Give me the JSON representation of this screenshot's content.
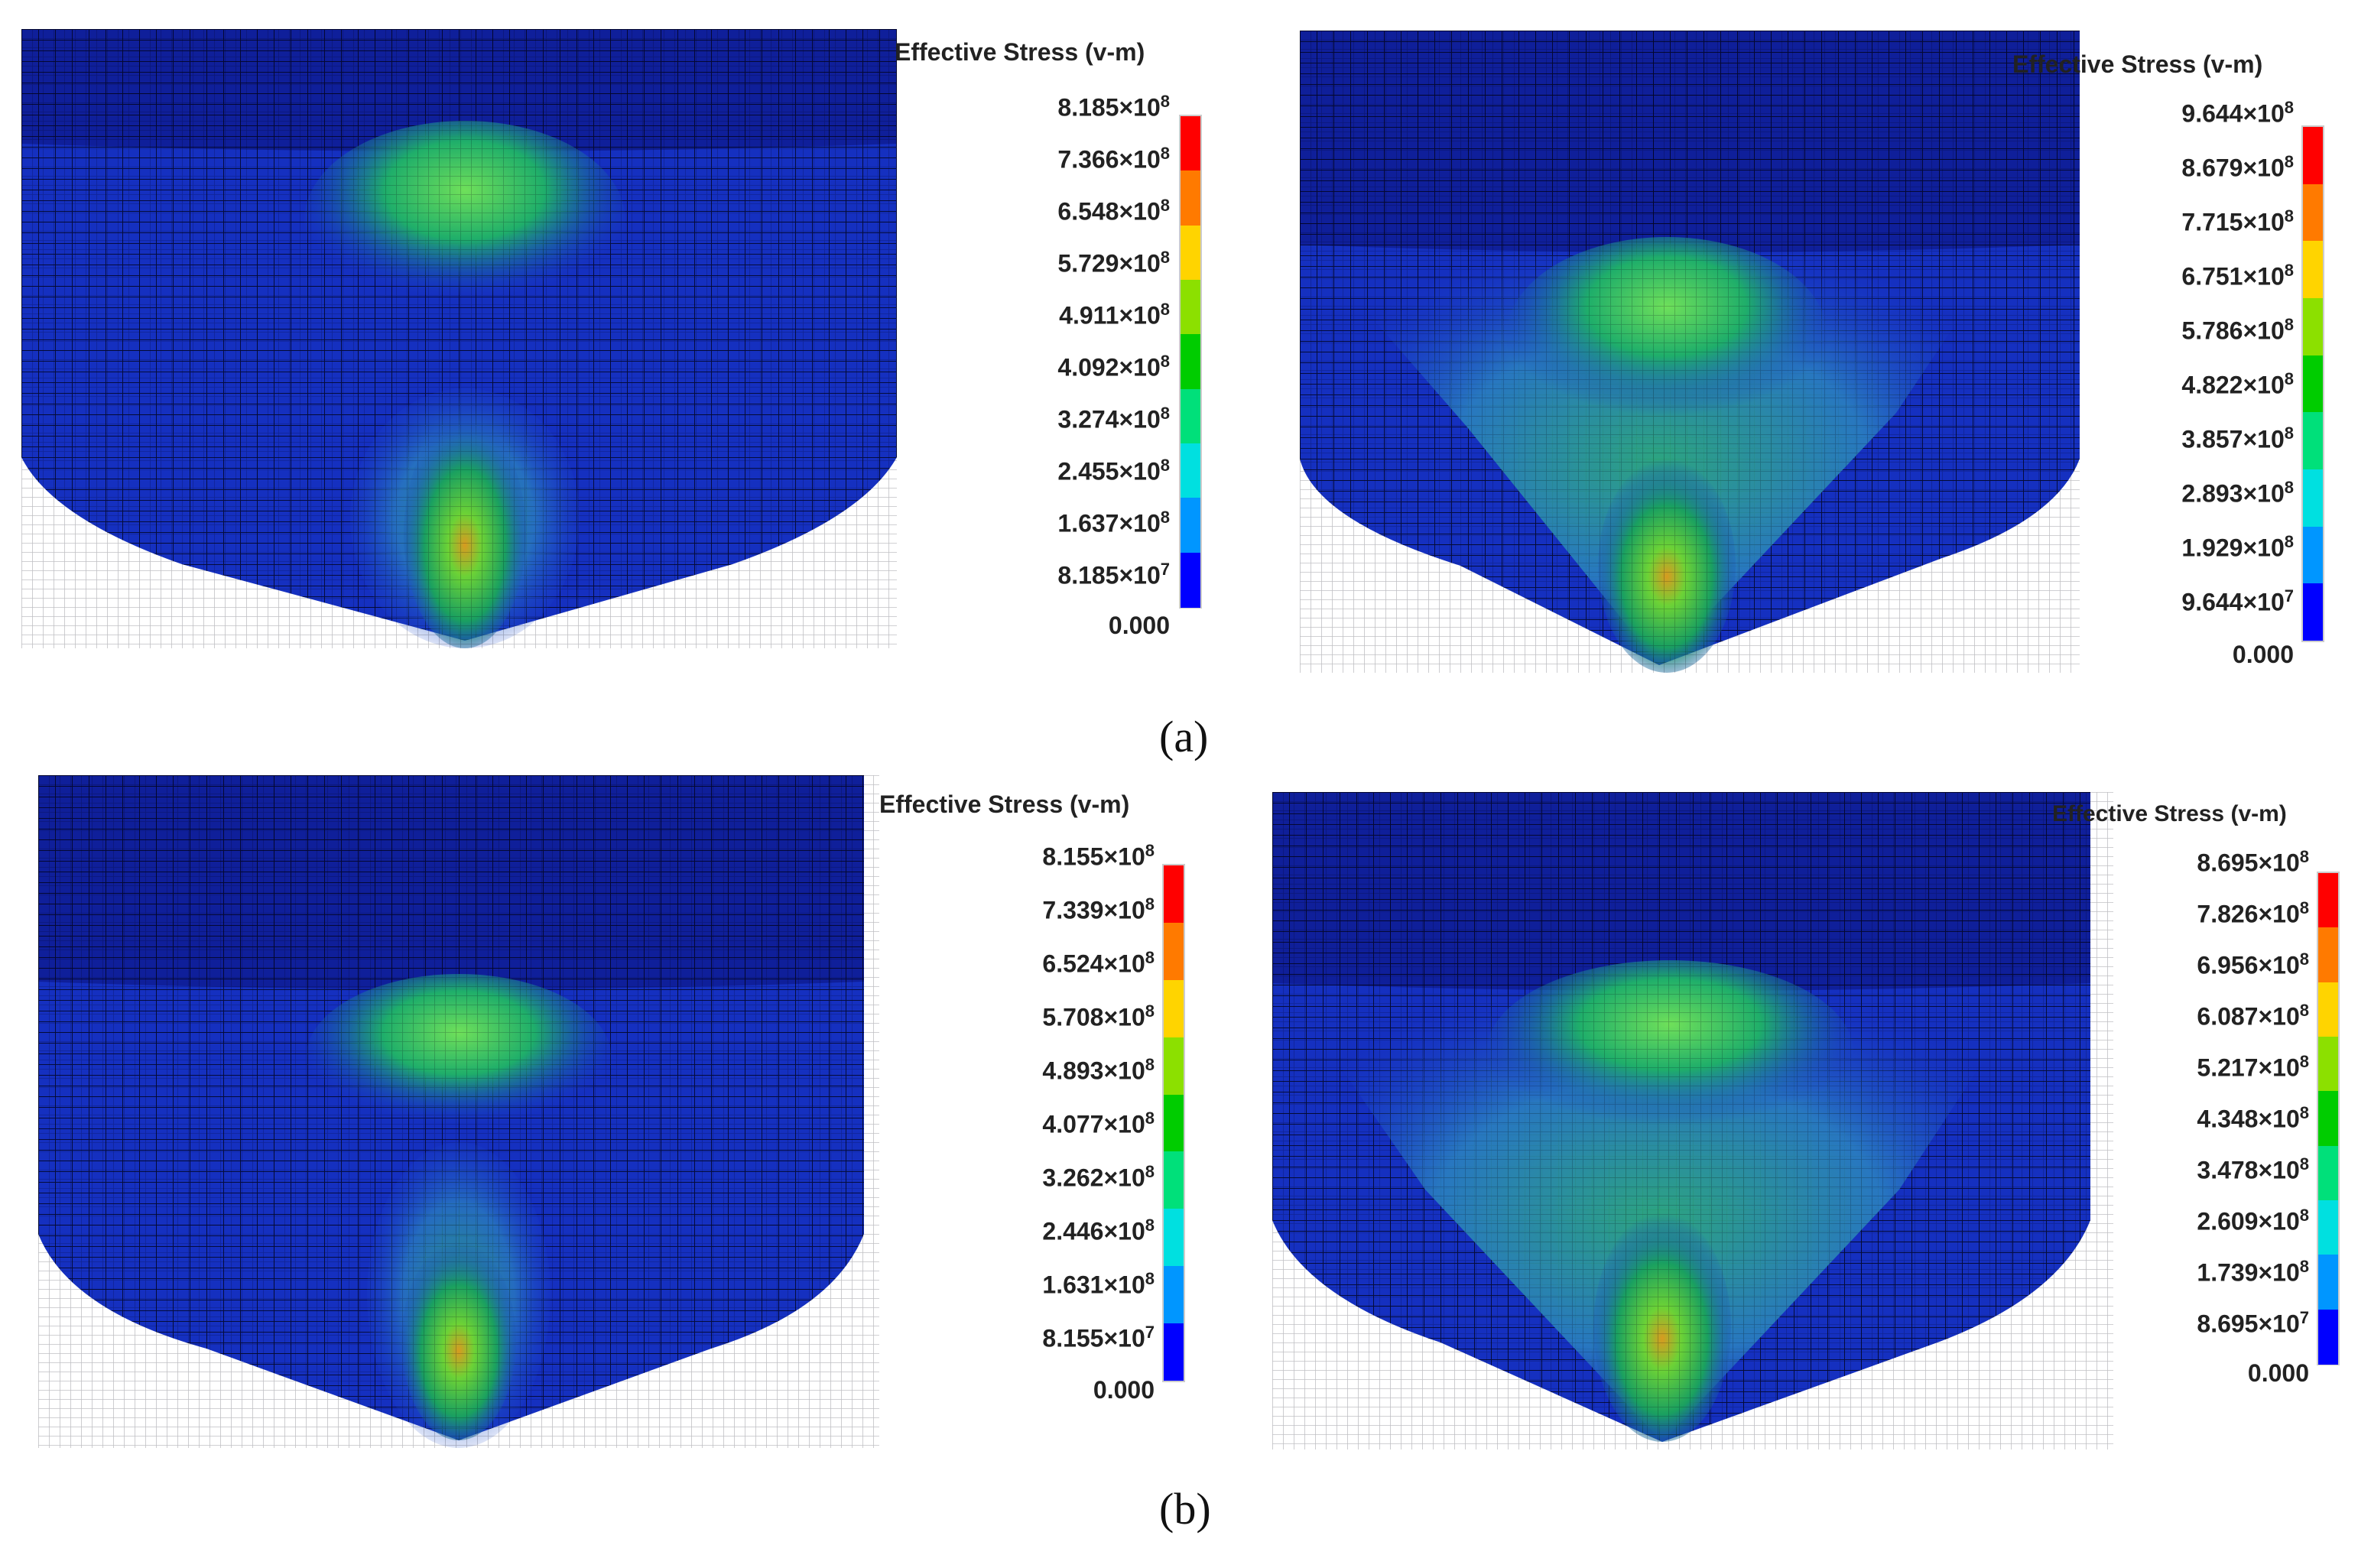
{
  "legend_colors": [
    "#ff0000",
    "#ff7a00",
    "#ffd400",
    "#8ce000",
    "#00cc00",
    "#00e07a",
    "#00e0e0",
    "#0096ff",
    "#0000ff"
  ],
  "panels": [
    {
      "title": "Effective Stress (v-m)",
      "labels": [
        "8.185×10^8",
        "7.366×10^8",
        "6.548×10^8",
        "5.729×10^8",
        "4.911×10^8",
        "4.092×10^8",
        "3.274×10^8",
        "2.455×10^8",
        "1.637×10^8",
        "8.185×10^7",
        "0.000"
      ]
    },
    {
      "title": "Effective Stress (v-m)",
      "labels": [
        "9.644×10^8",
        "8.679×10^8",
        "7.715×10^8",
        "6.751×10^8",
        "5.786×10^8",
        "4.822×10^8",
        "3.857×10^8",
        "2.893×10^8",
        "1.929×10^8",
        "9.644×10^7",
        "0.000"
      ]
    },
    {
      "title": "Effective Stress (v-m)",
      "labels": [
        "8.155×10^8",
        "7.339×10^8",
        "6.524×10^8",
        "5.708×10^8",
        "4.893×10^8",
        "4.077×10^8",
        "3.262×10^8",
        "2.446×10^8",
        "1.631×10^8",
        "8.155×10^7",
        "0.000"
      ]
    },
    {
      "title": "Effective Stress (v-m)",
      "labels": [
        "8.695×10^8",
        "7.826×10^8",
        "6.956×10^8",
        "6.087×10^8",
        "5.217×10^8",
        "4.348×10^8",
        "3.478×10^8",
        "2.609×10^8",
        "1.739×10^8",
        "8.695×10^7",
        "0.000"
      ]
    }
  ],
  "captions": [
    "(a)",
    "(b)"
  ]
}
